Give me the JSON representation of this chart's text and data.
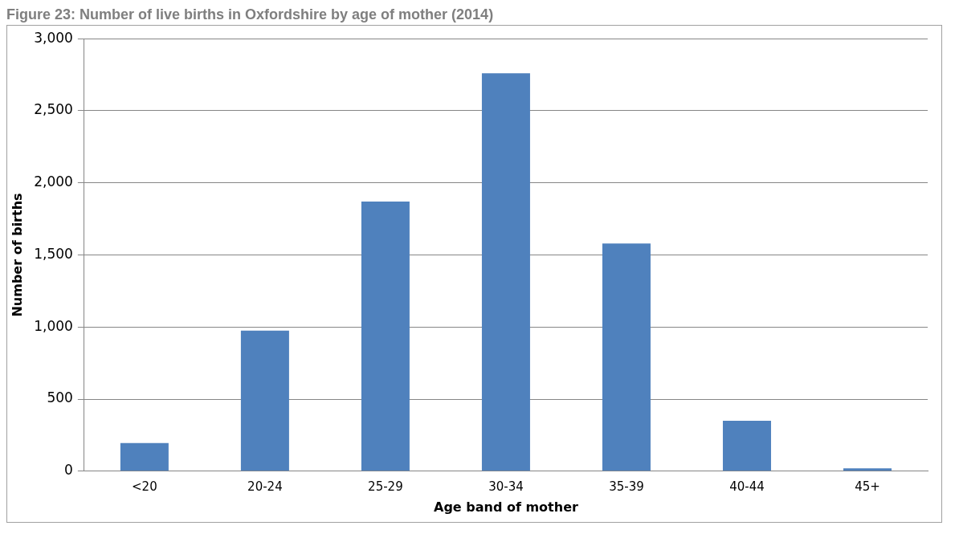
{
  "chart_data": {
    "type": "bar",
    "title": "Figure 23: Number of live births in Oxfordshire by age of mother (2014)",
    "xlabel": "Age band of mother",
    "ylabel": "Number of births",
    "categories": [
      "<20",
      "20-24",
      "25-29",
      "30-34",
      "35-39",
      "40-44",
      "45+"
    ],
    "values": [
      195,
      975,
      1870,
      2760,
      1580,
      350,
      20
    ],
    "color": "#4f81bd",
    "ylim": [
      0,
      3000
    ],
    "yticks": [
      0,
      500,
      {
        "value": 1000,
        "label": "1,000"
      },
      {
        "value": 1500,
        "label": "1,500"
      },
      {
        "value": 2000,
        "label": "2,000"
      },
      {
        "value": 2500,
        "label": "2,500"
      },
      {
        "value": 3000,
        "label": "3,000"
      }
    ],
    "grid": "y"
  }
}
